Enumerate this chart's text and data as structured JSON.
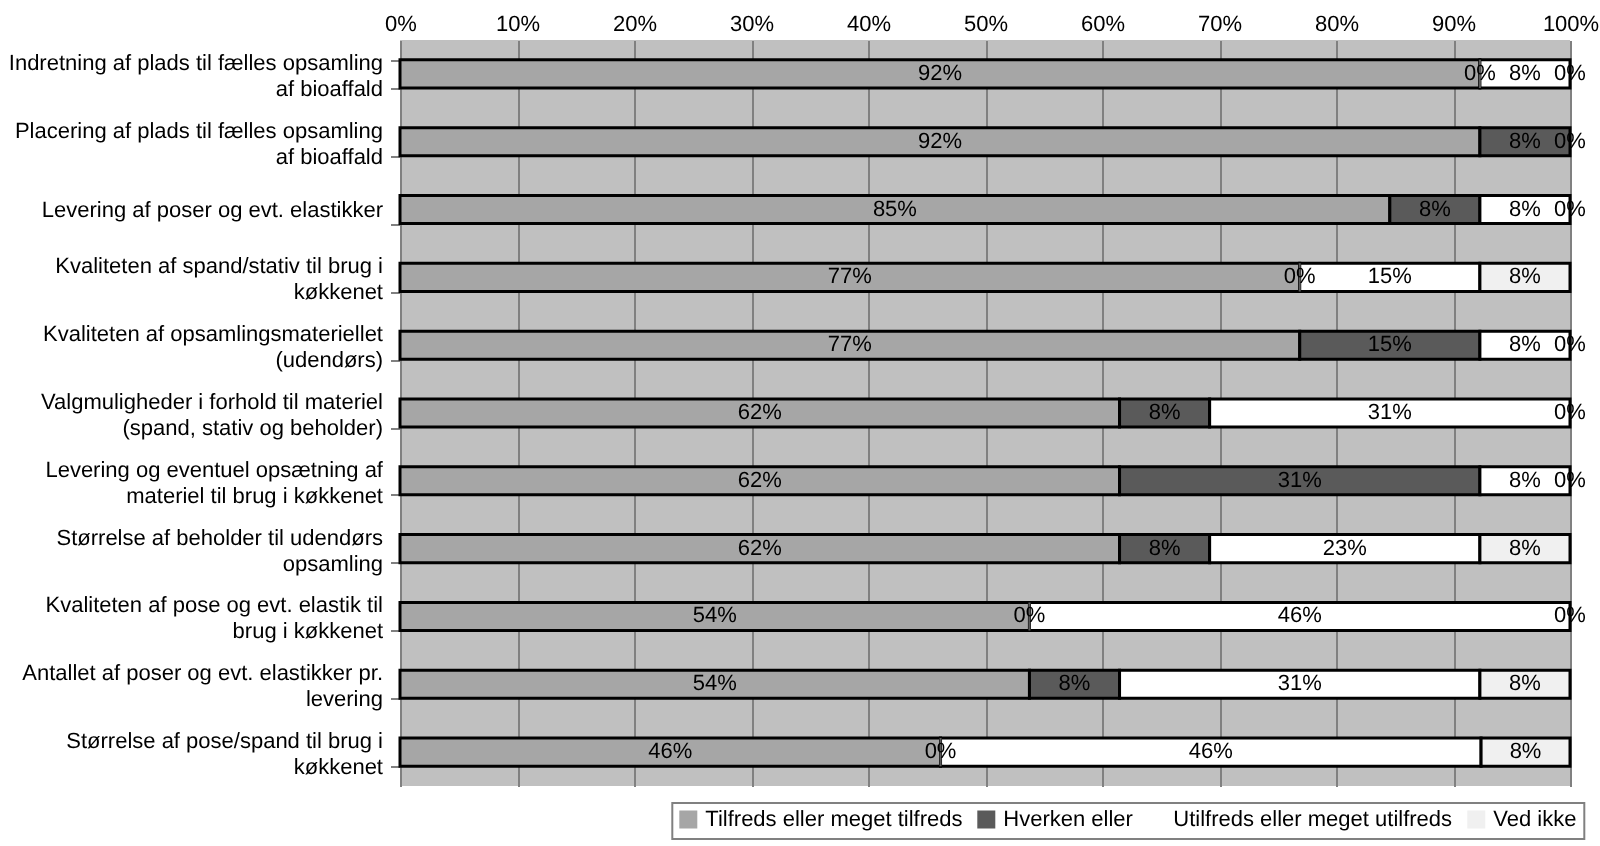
{
  "chart_data": {
    "type": "bar",
    "orientation": "horizontal",
    "stacked": true,
    "categories": [
      "Indretning af plads til fælles opsamling af bioaffald",
      "Placering af plads til fælles opsamling af bioaffald",
      "Levering af poser og evt. elastikker",
      "Kvaliteten af spand/stativ til brug i køkkenet",
      "Kvaliteten af opsamlingsmateriellet (udendørs)",
      "Valgmuligheder i forhold til materiel (spand, stativ og beholder)",
      "Levering og eventuel opsætning af materiel til brug i køkkenet",
      "Størrelse af beholder til udendørs opsamling",
      "Kvaliteten af pose og evt. elastik til brug i køkkenet",
      "Antallet af poser og evt. elastikker pr. levering",
      "Størrelse af pose/spand til brug i køkkenet"
    ],
    "series": [
      {
        "name": "Tilfreds eller meget tilfreds",
        "color": "#a6a6a6",
        "values": [
          92.3,
          92.3,
          84.6,
          76.9,
          76.9,
          61.5,
          61.5,
          61.5,
          53.8,
          53.8,
          46.2
        ],
        "value_labels": [
          "92%",
          "92%",
          "85%",
          "77%",
          "77%",
          "62%",
          "62%",
          "62%",
          "54%",
          "54%",
          "46%"
        ]
      },
      {
        "name": "Hverken eller",
        "color": "#5a5a5a",
        "values": [
          0,
          7.7,
          7.7,
          0,
          15.4,
          7.7,
          30.8,
          7.7,
          0,
          7.7,
          0
        ],
        "value_labels": [
          "0%",
          "8%",
          "8%",
          "0%",
          "15%",
          "8%",
          "31%",
          "8%",
          "0%",
          "8%",
          "0%"
        ]
      },
      {
        "name": "Utilfreds eller meget utilfreds",
        "color": "#ffffff",
        "values": [
          7.7,
          0,
          7.7,
          15.4,
          7.7,
          30.8,
          7.7,
          23.1,
          46.2,
          30.8,
          46.2
        ],
        "value_labels": [
          "8%",
          null,
          "8%",
          "15%",
          "8%",
          "31%",
          "8%",
          "23%",
          "46%",
          "31%",
          "46%"
        ]
      },
      {
        "name": "Ved ikke",
        "color": "#f0f0f0",
        "values": [
          0,
          0,
          0,
          7.7,
          0,
          0,
          0,
          7.7,
          0,
          7.7,
          7.6
        ],
        "value_labels": [
          "0%",
          "0%",
          "0%",
          "8%",
          "0%",
          "0%",
          "0%",
          "8%",
          "0%",
          "8%",
          "8%"
        ]
      }
    ],
    "xlim": [
      0,
      100
    ],
    "xticks": [
      {
        "value": 0,
        "label": "0%"
      },
      {
        "value": 10,
        "label": "10%"
      },
      {
        "value": 20,
        "label": "20%"
      },
      {
        "value": 30,
        "label": "30%"
      },
      {
        "value": 40,
        "label": "40%"
      },
      {
        "value": 50,
        "label": "50%"
      },
      {
        "value": 60,
        "label": "60%"
      },
      {
        "value": 70,
        "label": "70%"
      },
      {
        "value": 80,
        "label": "80%"
      },
      {
        "value": 90,
        "label": "90%"
      },
      {
        "value": 100,
        "label": "100%"
      }
    ],
    "grid": "x",
    "legend": "bottom right"
  }
}
